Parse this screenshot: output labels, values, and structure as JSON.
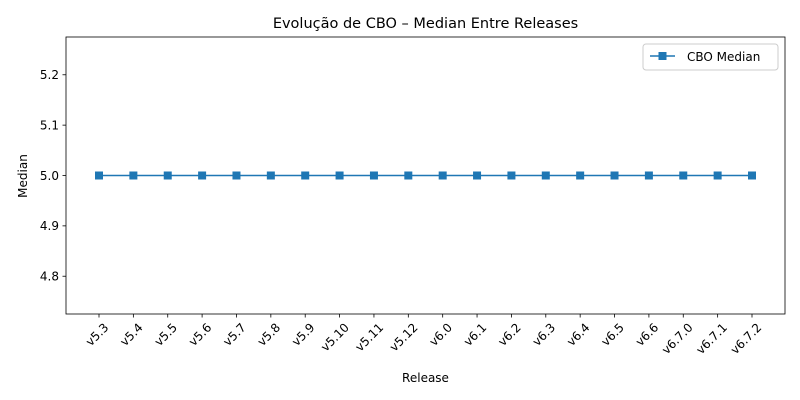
{
  "chart_data": {
    "type": "line",
    "title": "Evolução de CBO – Median Entre Releases",
    "xlabel": "Release",
    "ylabel": "Median",
    "categories": [
      "v5.3",
      "v5.4",
      "v5.5",
      "v5.6",
      "v5.7",
      "v5.8",
      "v5.9",
      "v5.10",
      "v5.11",
      "v5.12",
      "v6.0",
      "v6.1",
      "v6.2",
      "v6.3",
      "v6.4",
      "v6.5",
      "v6.6",
      "v6.7.0",
      "v6.7.1",
      "v6.7.2"
    ],
    "series": [
      {
        "name": "CBO Median",
        "values": [
          5.0,
          5.0,
          5.0,
          5.0,
          5.0,
          5.0,
          5.0,
          5.0,
          5.0,
          5.0,
          5.0,
          5.0,
          5.0,
          5.0,
          5.0,
          5.0,
          5.0,
          5.0,
          5.0,
          5.0
        ],
        "color": "#1f77b4",
        "marker": "square"
      }
    ],
    "ylim": [
      4.725,
      5.275
    ],
    "yticks": [
      4.8,
      4.9,
      5.0,
      5.1,
      5.2
    ],
    "ytick_labels": [
      "4.8",
      "4.9",
      "5.0",
      "5.1",
      "5.2"
    ],
    "grid": false,
    "legend_position": "top-right"
  }
}
